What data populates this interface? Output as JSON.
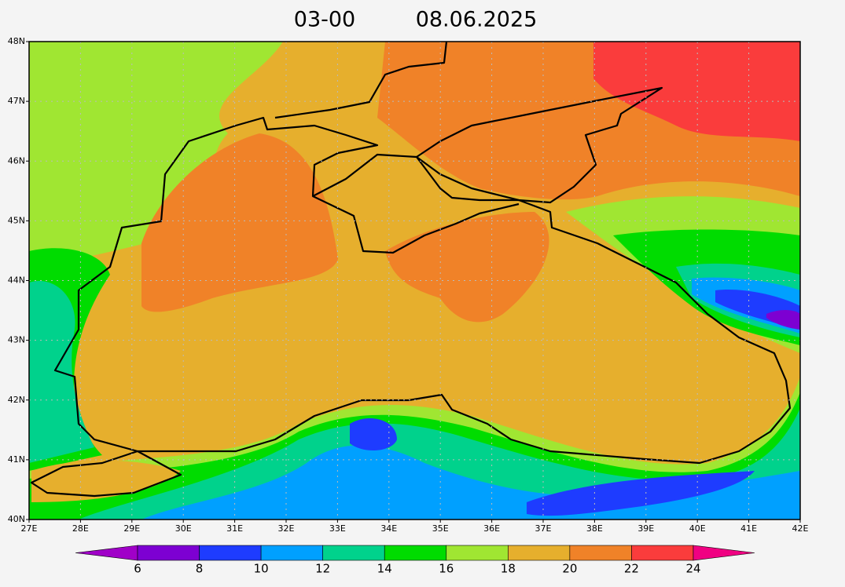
{
  "header": {
    "time": "03-00",
    "date": "08.06.2025"
  },
  "map": {
    "lat_labels": [
      "48N",
      "47N",
      "46N",
      "45N",
      "44N",
      "43N",
      "42N",
      "41N",
      "40N"
    ],
    "lon_labels": [
      "27E",
      "28E",
      "29E",
      "30E",
      "31E",
      "32E",
      "33E",
      "34E",
      "35E",
      "36E",
      "37E",
      "38E",
      "39E",
      "40E",
      "41E",
      "42E"
    ]
  },
  "colorbar": {
    "ticks": [
      6,
      8,
      10,
      12,
      14,
      16,
      18,
      20,
      22,
      24
    ],
    "colors": [
      "#a000c8",
      "#7d00d2",
      "#1e3cff",
      "#00a0ff",
      "#00d28c",
      "#00dc00",
      "#a0e632",
      "#e6af2d",
      "#f08228",
      "#fa3c3c",
      "#f00082"
    ]
  }
}
